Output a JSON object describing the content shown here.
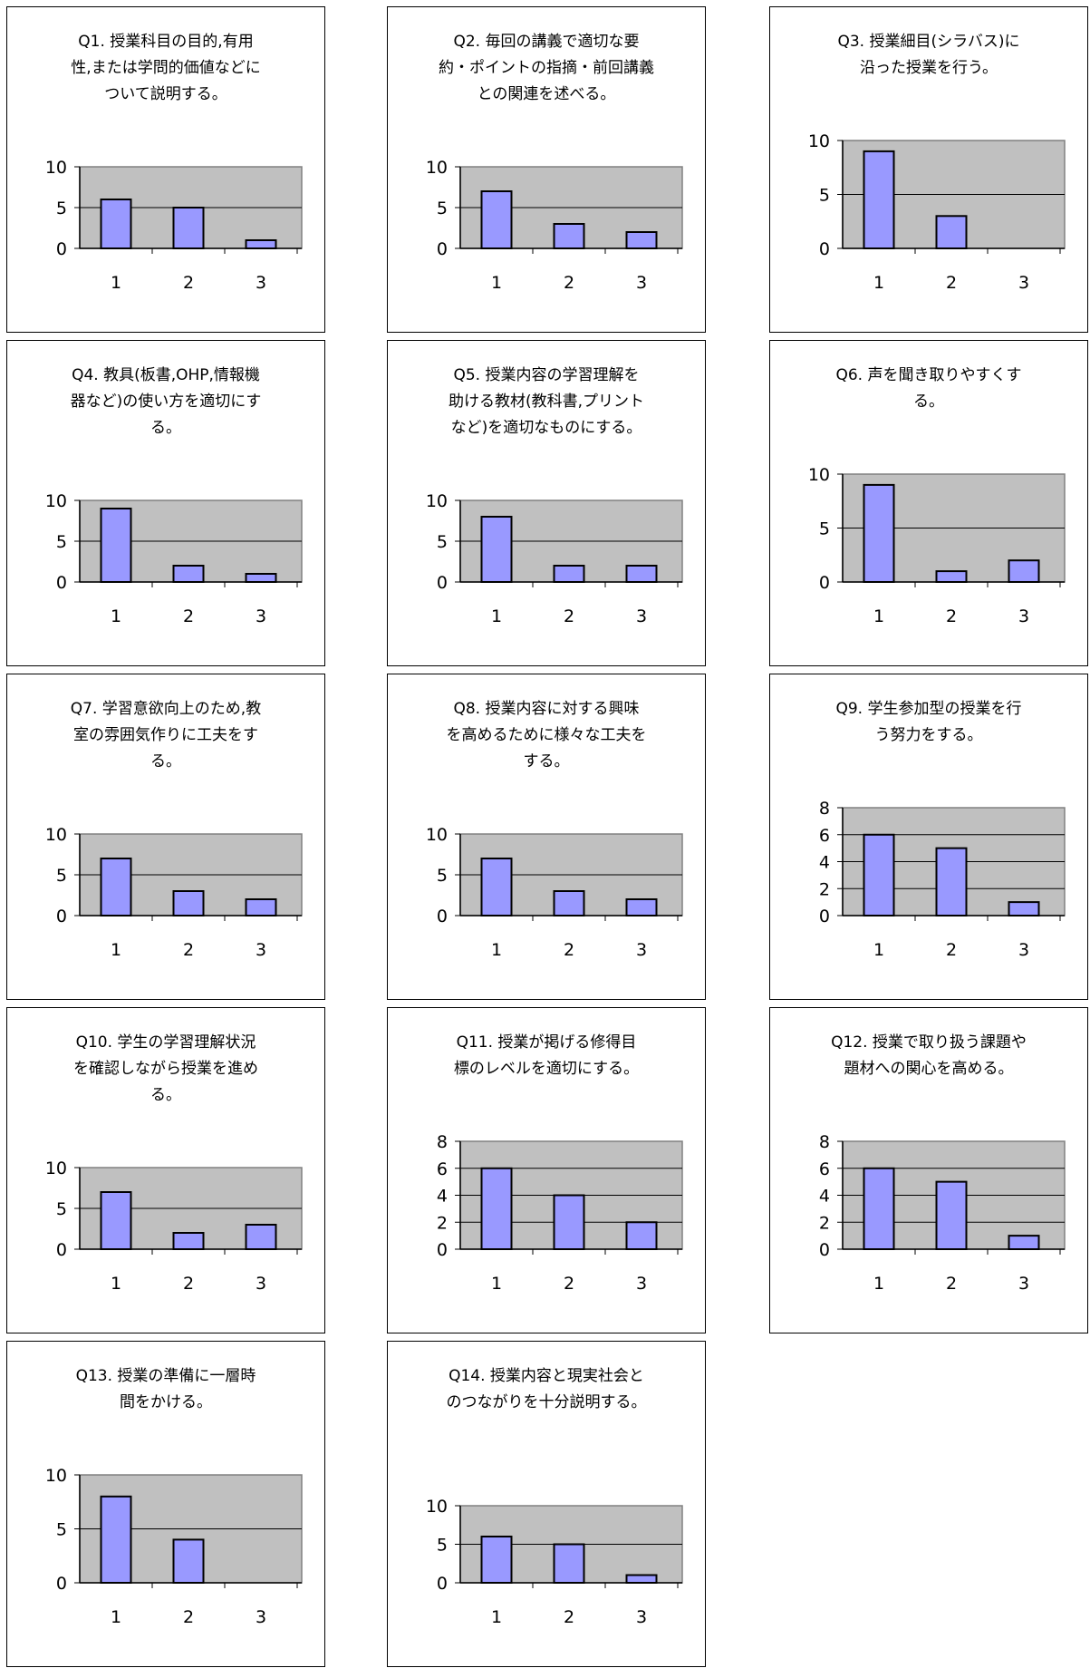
{
  "colors": {
    "plot_bg": "#c0c0c0",
    "bar_fill": "#9999ff",
    "bar_stroke": "#000000",
    "gridline": "#000000",
    "panel_border": "#000000"
  },
  "chart_data": [
    {
      "type": "bar",
      "title": "Q1. 授業科目の目的,有用\n性,または学問的価値などに\nついて説明する。",
      "categories": [
        "1",
        "2",
        "3"
      ],
      "values": [
        6,
        5,
        1
      ],
      "ylim": [
        0,
        10
      ],
      "yticks": [
        0,
        5,
        10
      ],
      "grid": true,
      "xlabel": "",
      "ylabel": ""
    },
    {
      "type": "bar",
      "title": "Q2. 毎回の講義で適切な要\n約・ポイントの指摘・前回講義\nとの関連を述べる。",
      "categories": [
        "1",
        "2",
        "3"
      ],
      "values": [
        7,
        3,
        2
      ],
      "ylim": [
        0,
        10
      ],
      "yticks": [
        0,
        5,
        10
      ],
      "grid": true,
      "xlabel": "",
      "ylabel": ""
    },
    {
      "type": "bar",
      "title": "Q3. 授業細目(シラバス)に\n沿った授業を行う。",
      "categories": [
        "1",
        "2",
        "3"
      ],
      "values": [
        9,
        3,
        0
      ],
      "ylim": [
        0,
        10
      ],
      "yticks": [
        0,
        5,
        10
      ],
      "grid": true,
      "xlabel": "",
      "ylabel": ""
    },
    {
      "type": "bar",
      "title": "Q4. 教具(板書,OHP,情報機\n器など)の使い方を適切にす\nる。",
      "categories": [
        "1",
        "2",
        "3"
      ],
      "values": [
        9,
        2,
        1
      ],
      "ylim": [
        0,
        10
      ],
      "yticks": [
        0,
        5,
        10
      ],
      "grid": true,
      "xlabel": "",
      "ylabel": ""
    },
    {
      "type": "bar",
      "title": "Q5. 授業内容の学習理解を\n助ける教材(教科書,プリント\nなど)を適切なものにする。",
      "categories": [
        "1",
        "2",
        "3"
      ],
      "values": [
        8,
        2,
        2
      ],
      "ylim": [
        0,
        10
      ],
      "yticks": [
        0,
        5,
        10
      ],
      "grid": true,
      "xlabel": "",
      "ylabel": ""
    },
    {
      "type": "bar",
      "title": "Q6. 声を聞き取りやすくす\nる。",
      "categories": [
        "1",
        "2",
        "3"
      ],
      "values": [
        9,
        1,
        2
      ],
      "ylim": [
        0,
        10
      ],
      "yticks": [
        0,
        5,
        10
      ],
      "grid": true,
      "xlabel": "",
      "ylabel": ""
    },
    {
      "type": "bar",
      "title": "Q7. 学習意欲向上のため,教\n室の雰囲気作りに工夫をす\nる。",
      "categories": [
        "1",
        "2",
        "3"
      ],
      "values": [
        7,
        3,
        2
      ],
      "ylim": [
        0,
        10
      ],
      "yticks": [
        0,
        5,
        10
      ],
      "grid": true,
      "xlabel": "",
      "ylabel": ""
    },
    {
      "type": "bar",
      "title": "Q8. 授業内容に対する興味\nを高めるために様々な工夫を\nする。",
      "categories": [
        "1",
        "2",
        "3"
      ],
      "values": [
        7,
        3,
        2
      ],
      "ylim": [
        0,
        10
      ],
      "yticks": [
        0,
        5,
        10
      ],
      "grid": true,
      "xlabel": "",
      "ylabel": ""
    },
    {
      "type": "bar",
      "title": "Q9. 学生参加型の授業を行\nう努力をする。",
      "categories": [
        "1",
        "2",
        "3"
      ],
      "values": [
        6,
        5,
        1
      ],
      "ylim": [
        0,
        8
      ],
      "yticks": [
        0,
        2,
        4,
        6,
        8
      ],
      "grid": true,
      "xlabel": "",
      "ylabel": ""
    },
    {
      "type": "bar",
      "title": "Q10. 学生の学習理解状況\nを確認しながら授業を進め\nる。",
      "categories": [
        "1",
        "2",
        "3"
      ],
      "values": [
        7,
        2,
        3
      ],
      "ylim": [
        0,
        10
      ],
      "yticks": [
        0,
        5,
        10
      ],
      "grid": true,
      "xlabel": "",
      "ylabel": ""
    },
    {
      "type": "bar",
      "title": "Q11. 授業が掲げる修得目\n標のレベルを適切にする。",
      "categories": [
        "1",
        "2",
        "3"
      ],
      "values": [
        6,
        4,
        2
      ],
      "ylim": [
        0,
        8
      ],
      "yticks": [
        0,
        2,
        4,
        6,
        8
      ],
      "grid": true,
      "xlabel": "",
      "ylabel": ""
    },
    {
      "type": "bar",
      "title": "Q12. 授業で取り扱う課題や\n題材への関心を高める。",
      "categories": [
        "1",
        "2",
        "3"
      ],
      "values": [
        6,
        5,
        1
      ],
      "ylim": [
        0,
        8
      ],
      "yticks": [
        0,
        2,
        4,
        6,
        8
      ],
      "grid": true,
      "xlabel": "",
      "ylabel": ""
    },
    {
      "type": "bar",
      "title": "Q13. 授業の準備に一層時\n間をかける。",
      "categories": [
        "1",
        "2",
        "3"
      ],
      "values": [
        8,
        4,
        0
      ],
      "ylim": [
        0,
        10
      ],
      "yticks": [
        0,
        5,
        10
      ],
      "grid": true,
      "xlabel": "",
      "ylabel": ""
    },
    {
      "type": "bar",
      "title": "Q14. 授業内容と現実社会と\nのつながりを十分説明する。",
      "categories": [
        "1",
        "2",
        "3"
      ],
      "values": [
        6,
        5,
        1
      ],
      "ylim": [
        0,
        10
      ],
      "yticks": [
        0,
        5,
        10
      ],
      "grid": true,
      "xlabel": "",
      "ylabel": ""
    }
  ]
}
